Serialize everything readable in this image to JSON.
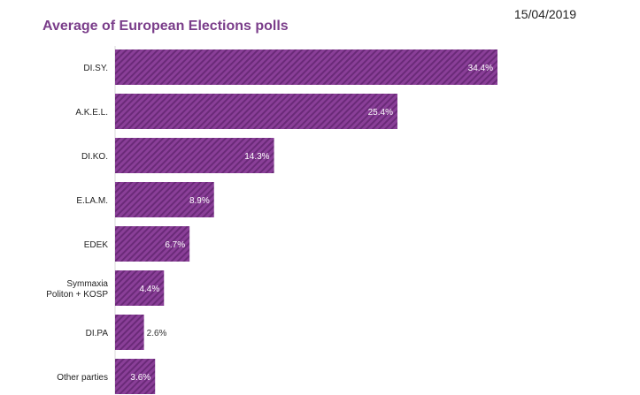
{
  "header": {
    "title": "Average of European Elections polls",
    "date": "15/04/2019"
  },
  "colors": {
    "bar": "#8a3f98",
    "stripe": "#6a2a78",
    "title": "#7a3d8a"
  },
  "chart_data": {
    "type": "bar",
    "orientation": "horizontal",
    "title": "Average of European Elections polls",
    "categories": [
      "DI.SY.",
      "A.K.E.L.",
      "DI.KO.",
      "E.LA.M.",
      "EDEK",
      "Symmaxia Politon  + KOSP",
      "DI.PA",
      "Other parties"
    ],
    "category_lines": [
      [
        "DI.SY."
      ],
      [
        "A.K.E.L."
      ],
      [
        "DI.KO."
      ],
      [
        "E.LA.M."
      ],
      [
        "EDEK"
      ],
      [
        "Symmaxia",
        "Politon  + KOSP"
      ],
      [
        "DI.PA"
      ],
      [
        "Other parties"
      ]
    ],
    "values": [
      34.4,
      25.4,
      14.3,
      8.9,
      6.7,
      4.4,
      2.6,
      3.6
    ],
    "value_labels": [
      "34.4%",
      "25.4%",
      "14.3%",
      "8.9%",
      "6.7%",
      "4.4%",
      "2.6%",
      "3.6%"
    ],
    "xlabel": "",
    "ylabel": "",
    "xlim": [
      0,
      34.4
    ],
    "unit": "%"
  }
}
